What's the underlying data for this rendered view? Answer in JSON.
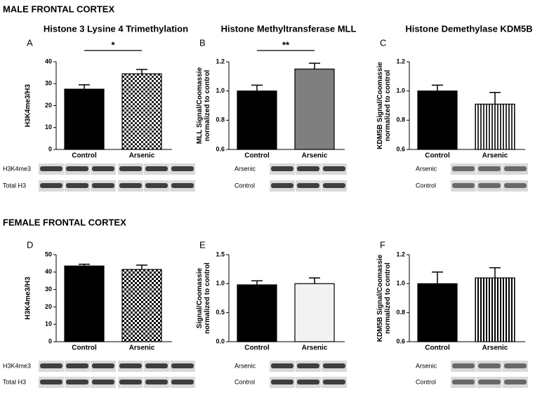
{
  "sections": [
    "MALE FRONTAL CORTEX",
    "FEMALE FRONTAL CORTEX"
  ],
  "chart_data": [
    {
      "type": "bar",
      "panel": "A",
      "title": "Histone 3 Lysine 4 Trimethylation",
      "ylabel": [
        "H3K4me3/H3"
      ],
      "categories": [
        "Control",
        "Arsenic"
      ],
      "values": [
        27.5,
        34.5
      ],
      "errors": [
        2,
        2
      ],
      "colors": [
        "#000000",
        "#222222"
      ],
      "patterns": [
        "solid",
        "checker"
      ],
      "ylim": [
        0,
        40
      ],
      "yticks": [
        0,
        10,
        20,
        30,
        40
      ],
      "significance": "*",
      "blot_labels": [
        "H3K4me3",
        "Total H3"
      ]
    },
    {
      "type": "bar",
      "panel": "B",
      "title": "Histone Methyltransferase MLL",
      "ylabel": [
        "MLL Signal/Coomassie",
        "normalized to control"
      ],
      "categories": [
        "Control",
        "Arsenic"
      ],
      "values": [
        1.0,
        1.15
      ],
      "errors": [
        0.04,
        0.04
      ],
      "colors": [
        "#000000",
        "#7f7f7f"
      ],
      "patterns": [
        "solid",
        "solid"
      ],
      "ylim": [
        0.6,
        1.2
      ],
      "yticks": [
        {
          "value": 0.6,
          "label": "0.6"
        },
        {
          "value": 0.8,
          "label": "0.8"
        },
        {
          "value": 1.0,
          "label": "1.0"
        },
        {
          "value": 1.2,
          "label": "1.2"
        }
      ],
      "significance": "**",
      "blot_labels": [
        "Arsenic",
        "Control"
      ]
    },
    {
      "type": "bar",
      "panel": "C",
      "title": "Histone Demethylase KDM5B",
      "ylabel": [
        "KDM5B Signal/Coomassie",
        "normalized to control"
      ],
      "categories": [
        "Control",
        "Arsenic"
      ],
      "values": [
        1.0,
        0.91
      ],
      "errors": [
        0.04,
        0.08
      ],
      "colors": [
        "#000000",
        "#333333"
      ],
      "patterns": [
        "solid",
        "stripes"
      ],
      "ylim": [
        0.6,
        1.2
      ],
      "yticks": [
        {
          "value": 0.6,
          "label": "0.6"
        },
        {
          "value": 0.8,
          "label": "0.8"
        },
        {
          "value": 1.0,
          "label": "1.0"
        },
        {
          "value": 1.2,
          "label": "1.2"
        }
      ],
      "blot_labels": [
        "Arsenic",
        "Control"
      ]
    },
    {
      "type": "bar",
      "panel": "D",
      "ylabel": [
        "H3K4me3/H3"
      ],
      "categories": [
        "Control",
        "Arsenic"
      ],
      "values": [
        43.5,
        41.5
      ],
      "errors": [
        1,
        2.5
      ],
      "colors": [
        "#000000",
        "#000000"
      ],
      "patterns": [
        "solid",
        "checker"
      ],
      "ylim": [
        0,
        50
      ],
      "yticks": [
        0,
        10,
        20,
        30,
        40,
        50
      ],
      "blot_labels": [
        "H3K4me3",
        "Total H3"
      ]
    },
    {
      "type": "bar",
      "panel": "E",
      "ylabel": [
        "Signal/Coomassie",
        "normalized to control"
      ],
      "categories": [
        "Control",
        "Arsenic"
      ],
      "values": [
        0.98,
        1.0
      ],
      "errors": [
        0.07,
        0.1
      ],
      "colors": [
        "#000000",
        "#f2f2f2"
      ],
      "patterns": [
        "solid",
        "solid"
      ],
      "ylim": [
        0,
        1.5
      ],
      "yticks": [
        {
          "value": 0,
          "label": "0.0"
        },
        {
          "value": 0.5,
          "label": "0.5"
        },
        {
          "value": 1.0,
          "label": "1.0"
        },
        {
          "value": 1.5,
          "label": "1.5"
        }
      ],
      "blot_labels": [
        "Arsenic",
        "Control"
      ]
    },
    {
      "type": "bar",
      "panel": "F",
      "ylabel": [
        "KDM5B Signal/Coomassie",
        "normalized to control"
      ],
      "categories": [
        "Control",
        "Arsenic"
      ],
      "values": [
        1.0,
        1.04
      ],
      "errors": [
        0.08,
        0.07
      ],
      "colors": [
        "#000000",
        "#000000"
      ],
      "patterns": [
        "solid",
        "stripes"
      ],
      "ylim": [
        0.6,
        1.2
      ],
      "yticks": [
        {
          "value": 0.6,
          "label": "0.6"
        },
        {
          "value": 0.8,
          "label": "0.8"
        },
        {
          "value": 1.0,
          "label": "1.0"
        },
        {
          "value": 1.2,
          "label": "1.2"
        }
      ],
      "blot_labels": [
        "Arsenic",
        "Control"
      ]
    }
  ]
}
